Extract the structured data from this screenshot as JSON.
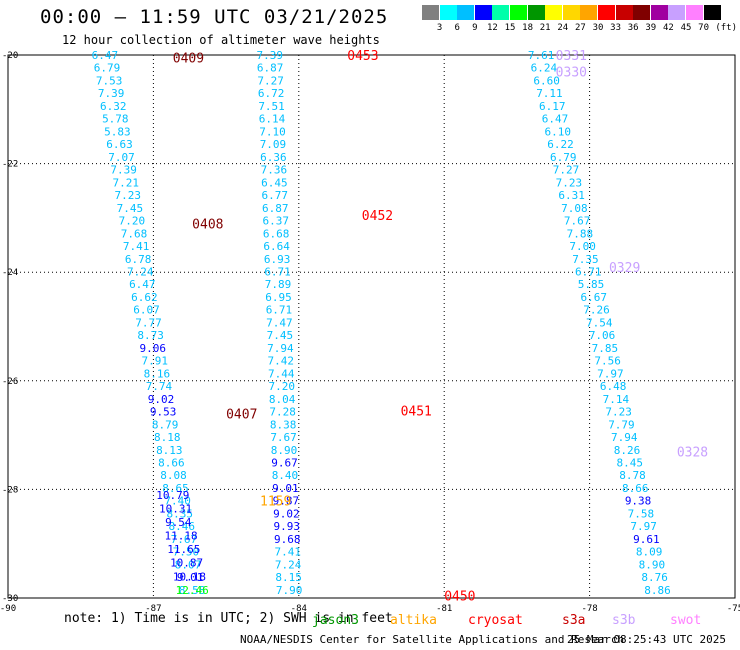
{
  "title": "00:00 – 11:59 UTC 03/21/2025",
  "subtitle": "12 hour collection of altimeter wave heights",
  "colorbar": {
    "unit": "(ft)",
    "labels": [
      "3",
      "6",
      "9",
      "12",
      "15",
      "18",
      "21",
      "24",
      "27",
      "30",
      "33",
      "36",
      "39",
      "42",
      "45",
      "70"
    ],
    "colors": [
      "#808080",
      "#00ffff",
      "#00bfff",
      "#0000ff",
      "#00ffaa",
      "#00ff00",
      "#009600",
      "#ffff00",
      "#ffd700",
      "#ffa500",
      "#ff0000",
      "#c80000",
      "#800000",
      "#a000a0",
      "#c8a0ff",
      "#ff80ff",
      "#000000"
    ]
  },
  "axes": {
    "lon_min": -90,
    "lon_max": -75,
    "lat_min": -30,
    "lat_max": -20,
    "lon_ticks": [
      -90,
      -87,
      -84,
      -81,
      -78,
      -75
    ],
    "lat_ticks": [
      -20,
      -22,
      -24,
      -26,
      -28,
      -30
    ],
    "lon_tick_labels": [
      "-90",
      "-87",
      "-84",
      "-81",
      "-78",
      "-75"
    ],
    "lat_tick_labels": [
      "-20",
      "-22",
      "-24",
      "-26",
      "-28",
      "-30"
    ]
  },
  "tracks": [
    {
      "lon0": -88.0,
      "lat0": -20.0,
      "lon1": -86.2,
      "lat1": -29.85,
      "color": "#00bfff",
      "values": [
        "6.47",
        "6.79",
        "7.53",
        "7.39",
        "6.32",
        "5.78",
        "5.83",
        "6.63",
        "7.07",
        "7.39",
        "7.21",
        "7.23",
        "7.45",
        "7.20",
        "7.68",
        "7.41",
        "6.78",
        "7.24",
        "6.47",
        "6.62",
        "6.07",
        "7.77",
        "8.73",
        "9.06",
        "7.91",
        "8.16",
        "7.74",
        "9.02",
        "9.53",
        "8.79",
        "8.18",
        "8.13",
        "8.66",
        "8.08",
        "8.65",
        "7.40",
        "8.35",
        "8.46",
        "7.67",
        "7.50",
        "8.07",
        "9.01",
        "8.58"
      ],
      "value_colors": {
        "9.06": "#0000ff",
        "9.02": "#0000ff",
        "9.53": "#0000ff",
        "9.01": "#0000ff"
      }
    },
    {
      "lon0": -86.6,
      "lat0": -28.1,
      "lon1": -86.2,
      "lat1": -29.85,
      "color": "#0000ff",
      "values": [
        "10.79",
        "10.31",
        "9.54",
        "11.18",
        "11.65",
        "10.87",
        "10.18",
        "12.46"
      ],
      "value_colors": {
        "12.46": "#00ff00"
      }
    },
    {
      "lon0": -84.6,
      "lat0": -20.0,
      "lon1": -84.2,
      "lat1": -29.85,
      "color": "#00bfff",
      "values": [
        "7.39",
        "6.87",
        "7.27",
        "6.72",
        "7.51",
        "6.14",
        "7.10",
        "7.09",
        "6.36",
        "7.36",
        "6.45",
        "6.77",
        "6.87",
        "6.37",
        "6.68",
        "6.64",
        "6.93",
        "6.71",
        "7.89",
        "6.95",
        "6.71",
        "7.47",
        "7.45",
        "7.94",
        "7.42",
        "7.44",
        "7.20",
        "8.04",
        "7.28",
        "8.38",
        "7.67",
        "8.90",
        "9.67",
        "8.40",
        "9.01",
        "9.87",
        "9.02",
        "9.93",
        "9.68",
        "7.41",
        "7.24",
        "8.15",
        "7.90"
      ],
      "value_colors": {
        "9.67": "#0000ff",
        "9.01": "#0000ff",
        "9.87": "#0000ff",
        "9.02": "#0000ff",
        "9.93": "#0000ff",
        "9.68": "#0000ff"
      }
    },
    {
      "lon0": -79.0,
      "lat0": -20.0,
      "lon1": -76.6,
      "lat1": -29.85,
      "color": "#00bfff",
      "values": [
        "7.61",
        "6.24",
        "6.60",
        "7.11",
        "6.17",
        "6.47",
        "6.10",
        "6.22",
        "6.79",
        "7.27",
        "7.23",
        "6.31",
        "7.08",
        "7.67",
        "7.88",
        "7.00",
        "7.35",
        "6.71",
        "5.85",
        "6.67",
        "7.26",
        "7.54",
        "7.06",
        "7.85",
        "7.56",
        "7.97",
        "6.48",
        "7.14",
        "7.23",
        "7.79",
        "7.94",
        "8.26",
        "8.45",
        "8.78",
        "8.66",
        "9.38",
        "7.58",
        "7.97",
        "9.61",
        "8.09",
        "8.90",
        "8.76",
        "8.86"
      ],
      "value_colors": {
        "9.38": "#0000ff",
        "9.61": "#0000ff"
      }
    }
  ],
  "time_labels": [
    {
      "text": "0409",
      "lon": -86.6,
      "lat": -20.05,
      "color": "#800000"
    },
    {
      "text": "0408",
      "lon": -86.2,
      "lat": -23.1,
      "color": "#800000"
    },
    {
      "text": "0407",
      "lon": -85.5,
      "lat": -26.6,
      "color": "#800000"
    },
    {
      "text": "1159",
      "lon": -84.8,
      "lat": -28.2,
      "color": "#ffa500"
    },
    {
      "text": "0453",
      "lon": -83.0,
      "lat": -20.0,
      "color": "#ff0000"
    },
    {
      "text": "0452",
      "lon": -82.7,
      "lat": -22.95,
      "color": "#ff0000"
    },
    {
      "text": "0451",
      "lon": -81.9,
      "lat": -26.55,
      "color": "#ff0000"
    },
    {
      "text": "0450",
      "lon": -81.0,
      "lat": -29.95,
      "color": "#ff0000"
    },
    {
      "text": "0331",
      "lon": -78.7,
      "lat": -20.0,
      "color": "#c8a0ff"
    },
    {
      "text": "0330",
      "lon": -78.7,
      "lat": -20.3,
      "color": "#c8a0ff"
    },
    {
      "text": "0329",
      "lon": -77.6,
      "lat": -23.9,
      "color": "#c8a0ff"
    },
    {
      "text": "0328",
      "lon": -76.2,
      "lat": -27.3,
      "color": "#c8a0ff"
    }
  ],
  "note": "note: 1) Time is in UTC; 2) SWH is in feet",
  "sources": [
    {
      "name": "jason3",
      "color": "#009600"
    },
    {
      "name": "altika",
      "color": "#ffa500"
    },
    {
      "name": "cryosat",
      "color": "#ff0000"
    },
    {
      "name": "s3a",
      "color": "#c80000"
    },
    {
      "name": "s3b",
      "color": "#c8a0ff"
    },
    {
      "name": "swot",
      "color": "#ff80ff"
    }
  ],
  "footer_left": "NOAA/NESDIS Center for Satellite Applications and Research",
  "footer_right": "25 Mar 08:25:43 UTC 2025"
}
